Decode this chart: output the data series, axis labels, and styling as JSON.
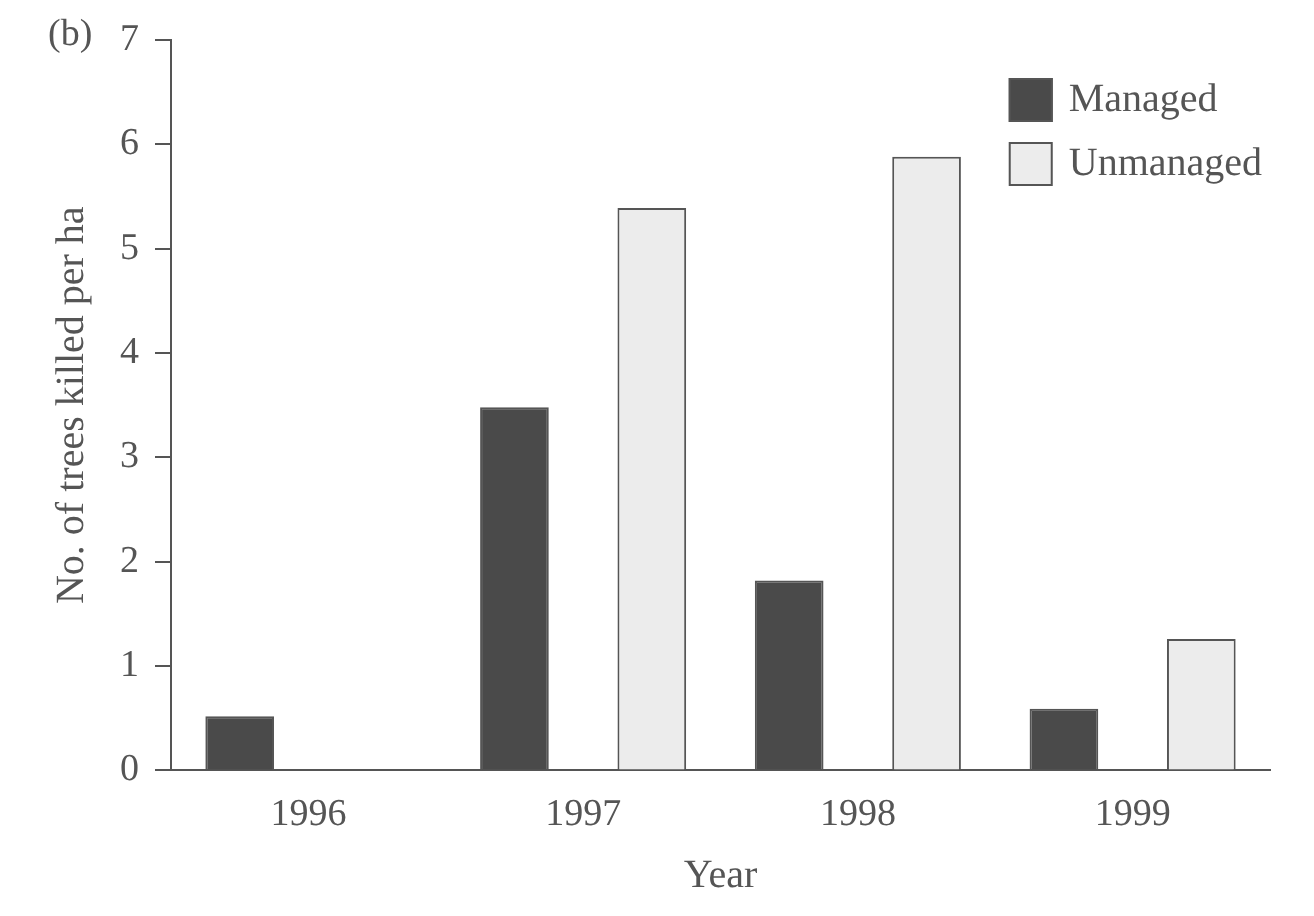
{
  "chart_data": {
    "type": "bar",
    "xlabel": "Year",
    "ylabel": "No. of trees killed per ha",
    "annotations": [
      "(b)"
    ],
    "categories": [
      "1996",
      "1997",
      "1998",
      "1999"
    ],
    "series": [
      {
        "name": "Managed",
        "color": "#4a4a4a",
        "values": [
          0.52,
          3.48,
          1.82,
          0.59
        ]
      },
      {
        "name": "Unmanaged",
        "color": "#ececec",
        "values": [
          0,
          5.39,
          5.88,
          1.26
        ]
      }
    ],
    "ylim": [
      0,
      7
    ],
    "yticks": [
      0,
      1,
      2,
      3,
      4,
      5,
      6,
      7
    ],
    "grid": false,
    "legend": "top right"
  }
}
